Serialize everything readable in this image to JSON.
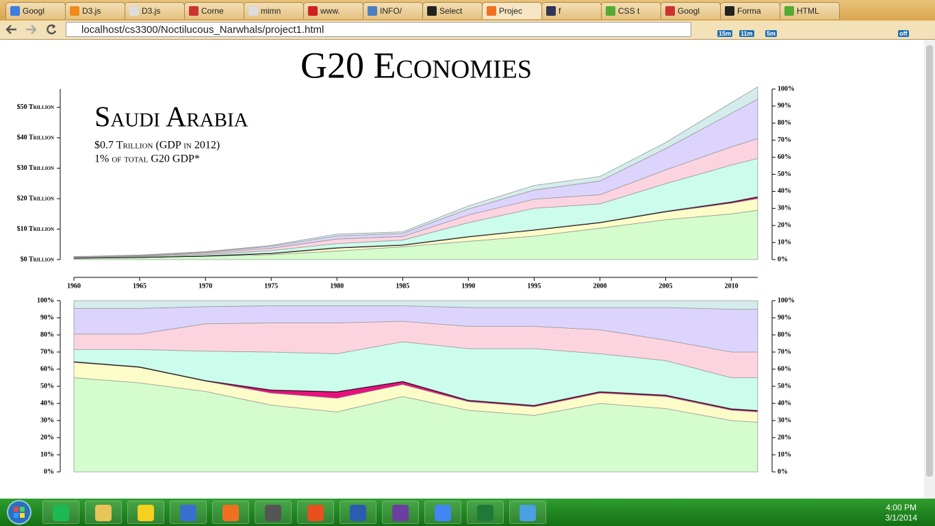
{
  "browser": {
    "tabs": [
      "Googl",
      "D3.js",
      "D3.js",
      "Corne",
      "mimn",
      "www.",
      "INFO/",
      "Select",
      "Projec",
      "f",
      "CSS t",
      "Googl",
      "Forma",
      "HTML"
    ],
    "url": "localhost/cs3300/Noctilucous_Narwhals/project1.html",
    "badges": [
      "15m",
      "11m",
      "5m",
      "off"
    ]
  },
  "page_title": "G20 Economies",
  "annotation": {
    "country": "Saudi Arabia",
    "gdp": "$0.7 Trillion (GDP in 2012)",
    "share": "1% of total G20 GDP*"
  },
  "chart_data": [
    {
      "type": "stacked_area",
      "x": [
        1960,
        1965,
        1970,
        1975,
        1980,
        1985,
        1990,
        1995,
        2000,
        2005,
        2010,
        2012
      ],
      "xlim": [
        1960,
        2012
      ],
      "xticks": [
        1960,
        1965,
        1970,
        1975,
        1980,
        1985,
        1990,
        1995,
        2000,
        2005,
        2010
      ],
      "ylim": [
        0,
        56
      ],
      "yticks": [
        {
          "value": 0,
          "label": "$0 Trillion"
        },
        {
          "value": 10,
          "label": "$10 Trillion"
        },
        {
          "value": 20,
          "label": "$20 Trillion"
        },
        {
          "value": 30,
          "label": "$30 Trillion"
        },
        {
          "value": 40,
          "label": "$40 Trillion"
        },
        {
          "value": 50,
          "label": "$50 Trillion"
        }
      ],
      "y2lim": [
        0,
        100
      ],
      "y2ticks": [
        {
          "value": 0,
          "label": "0%"
        },
        {
          "value": 10,
          "label": "10%"
        },
        {
          "value": 20,
          "label": "20%"
        },
        {
          "value": 30,
          "label": "30%"
        },
        {
          "value": 40,
          "label": "40%"
        },
        {
          "value": 50,
          "label": "50%"
        },
        {
          "value": 60,
          "label": "60%"
        },
        {
          "value": 70,
          "label": "70%"
        },
        {
          "value": 80,
          "label": "80%"
        },
        {
          "value": 90,
          "label": "90%"
        },
        {
          "value": 100,
          "label": "100%"
        }
      ],
      "series": [
        {
          "color": "#d4fccc",
          "values": [
            0.5,
            0.7,
            1.1,
            1.6,
            2.8,
            4.2,
            6.0,
            7.7,
            10.3,
            13.1,
            15.0,
            16.2
          ]
        },
        {
          "color": "#fcfcc8",
          "values": [
            0.1,
            0.15,
            0.2,
            0.5,
            1.0,
            0.6,
            1.5,
            2.0,
            1.8,
            2.5,
            3.5,
            3.8
          ]
        },
        {
          "color": "#e8107c",
          "outline_color": "#000000",
          "values": [
            0.002,
            0.004,
            0.005,
            0.05,
            0.16,
            0.1,
            0.12,
            0.14,
            0.19,
            0.33,
            0.53,
            0.71
          ]
        },
        {
          "color": "#ccfcec",
          "values": [
            0.1,
            0.2,
            0.4,
            0.8,
            1.3,
            1.5,
            4.5,
            7.0,
            6.0,
            9.0,
            12.0,
            12.5
          ]
        },
        {
          "color": "#fcd4e0",
          "values": [
            0.1,
            0.2,
            0.4,
            0.8,
            1.5,
            1.2,
            2.5,
            3.0,
            3.0,
            4.5,
            6.0,
            6.5
          ]
        },
        {
          "color": "#dcd4fc",
          "values": [
            0.1,
            0.15,
            0.3,
            0.6,
            1.0,
            1.0,
            2.0,
            3.0,
            4.5,
            7.0,
            11.0,
            13.0
          ]
        },
        {
          "color": "#d4ecec",
          "values": [
            0.1,
            0.1,
            0.2,
            0.3,
            0.6,
            0.5,
            1.0,
            1.5,
            1.5,
            2.0,
            3.5,
            4.0
          ]
        }
      ]
    },
    {
      "type": "stacked_area",
      "x": [
        1960,
        1965,
        1970,
        1975,
        1980,
        1985,
        1990,
        1995,
        2000,
        2005,
        2010,
        2012
      ],
      "xlim": [
        1960,
        2012
      ],
      "ylim": [
        0,
        100
      ],
      "yticks": [
        {
          "value": 0,
          "label": "0%"
        },
        {
          "value": 10,
          "label": "10%"
        },
        {
          "value": 20,
          "label": "20%"
        },
        {
          "value": 30,
          "label": "30%"
        },
        {
          "value": 40,
          "label": "40%"
        },
        {
          "value": 50,
          "label": "50%"
        },
        {
          "value": 60,
          "label": "60%"
        },
        {
          "value": 70,
          "label": "70%"
        },
        {
          "value": 80,
          "label": "80%"
        },
        {
          "value": 90,
          "label": "90%"
        },
        {
          "value": 100,
          "label": "100%"
        }
      ],
      "y2lim": [
        0,
        100
      ],
      "y2ticks": [
        {
          "value": 0,
          "label": "0%"
        },
        {
          "value": 10,
          "label": "10%"
        },
        {
          "value": 20,
          "label": "20%"
        },
        {
          "value": 30,
          "label": "30%"
        },
        {
          "value": 40,
          "label": "40%"
        },
        {
          "value": 50,
          "label": "50%"
        },
        {
          "value": 60,
          "label": "60%"
        },
        {
          "value": 70,
          "label": "70%"
        },
        {
          "value": 80,
          "label": "80%"
        },
        {
          "value": 90,
          "label": "90%"
        },
        {
          "value": 100,
          "label": "100%"
        }
      ],
      "series": [
        {
          "color": "#d4fccc",
          "values": [
            55,
            52,
            47,
            39,
            35,
            44,
            36,
            33,
            40,
            37,
            30,
            29
          ]
        },
        {
          "color": "#fcfcc8",
          "values": [
            9,
            9,
            6,
            7,
            8,
            7,
            5,
            5,
            6,
            7,
            6,
            6
          ]
        },
        {
          "color": "#e8107c",
          "outline_color": "#000000",
          "values": [
            0.5,
            0.5,
            0.5,
            2,
            4,
            2,
            1,
            1,
            1,
            1,
            1,
            1
          ]
        },
        {
          "color": "#ccfcec",
          "values": [
            7,
            10,
            17,
            22,
            22,
            23,
            30,
            33,
            22,
            20,
            18,
            19
          ]
        },
        {
          "color": "#fcd4e0",
          "values": [
            9,
            9,
            16,
            17,
            18,
            12,
            13,
            13,
            14,
            12,
            15,
            15
          ]
        },
        {
          "color": "#dcd4fc",
          "values": [
            15,
            15,
            10,
            10,
            10,
            9,
            11,
            11,
            13,
            19,
            25,
            25
          ]
        },
        {
          "color": "#d4ecec",
          "values": [
            4.5,
            4.5,
            3.5,
            3,
            3,
            3,
            4,
            4,
            4,
            4,
            5,
            5
          ]
        }
      ]
    }
  ],
  "taskbar": {
    "time": "4:00 PM",
    "date": "3/1/2014"
  }
}
